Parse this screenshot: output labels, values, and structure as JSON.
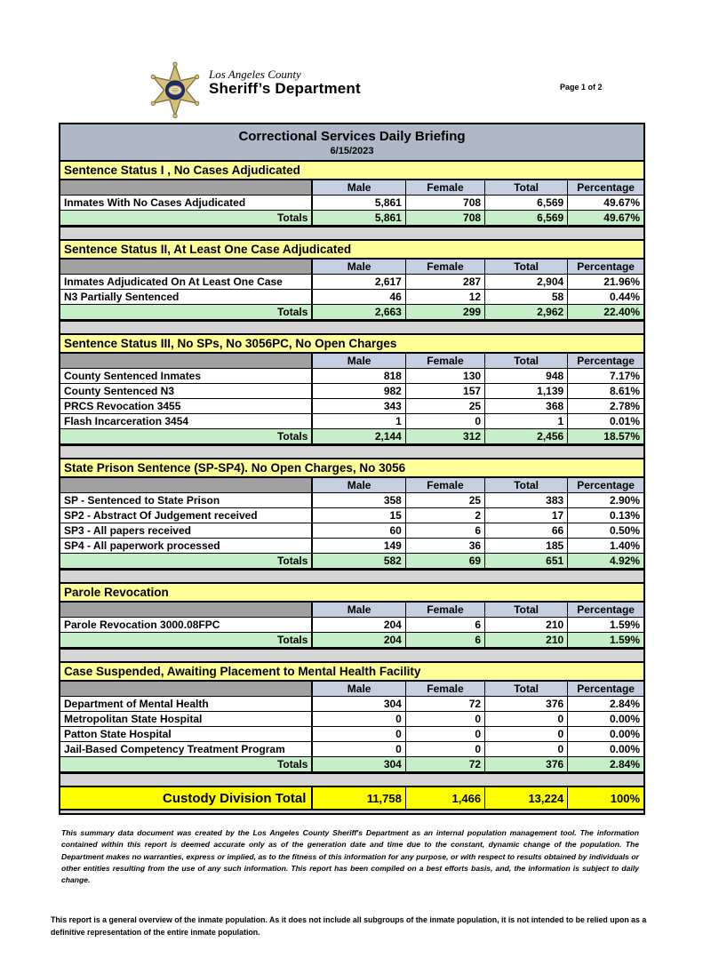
{
  "header": {
    "logo_county": "Los Angeles County",
    "logo_department": "Sheriff’s Department",
    "page_indicator": "Page 1 of 2",
    "badge_icon": "sheriff-star-badge"
  },
  "title": {
    "heading": "Correctional Services Daily Briefing",
    "date": "6/15/2023"
  },
  "table": {
    "columns": [
      "Male",
      "Female",
      "Total",
      "Percentage"
    ],
    "totals_label": "Totals"
  },
  "sections": [
    {
      "title": "Sentence Status I , No Cases Adjudicated",
      "rows": [
        {
          "label": "Inmates With No Cases Adjudicated",
          "values": [
            "5,861",
            "708",
            "6,569",
            "49.67%"
          ]
        }
      ],
      "totals": [
        "5,861",
        "708",
        "6,569",
        "49.67%"
      ]
    },
    {
      "title": "Sentence Status II, At Least One Case Adjudicated",
      "rows": [
        {
          "label": "Inmates Adjudicated On At Least One Case",
          "values": [
            "2,617",
            "287",
            "2,904",
            "21.96%"
          ]
        },
        {
          "label": "N3 Partially Sentenced",
          "values": [
            "46",
            "12",
            "58",
            "0.44%"
          ]
        }
      ],
      "totals": [
        "2,663",
        "299",
        "2,962",
        "22.40%"
      ]
    },
    {
      "title": "Sentence Status III, No SPs, No 3056PC, No Open Charges",
      "rows": [
        {
          "label": "County Sentenced Inmates",
          "values": [
            "818",
            "130",
            "948",
            "7.17%"
          ]
        },
        {
          "label": "County Sentenced N3",
          "values": [
            "982",
            "157",
            "1,139",
            "8.61%"
          ]
        },
        {
          "label": "PRCS Revocation 3455",
          "values": [
            "343",
            "25",
            "368",
            "2.78%"
          ]
        },
        {
          "label": "Flash Incarceration 3454",
          "values": [
            "1",
            "0",
            "1",
            "0.01%"
          ]
        }
      ],
      "totals": [
        "2,144",
        "312",
        "2,456",
        "18.57%"
      ]
    },
    {
      "title": "State Prison Sentence (SP-SP4). No Open Charges, No 3056",
      "rows": [
        {
          "label": "SP - Sentenced to State Prison",
          "values": [
            "358",
            "25",
            "383",
            "2.90%"
          ]
        },
        {
          "label": "SP2 - Abstract Of Judgement received",
          "values": [
            "15",
            "2",
            "17",
            "0.13%"
          ]
        },
        {
          "label": "SP3 - All papers received",
          "values": [
            "60",
            "6",
            "66",
            "0.50%"
          ]
        },
        {
          "label": "SP4 - All paperwork processed",
          "values": [
            "149",
            "36",
            "185",
            "1.40%"
          ]
        }
      ],
      "totals": [
        "582",
        "69",
        "651",
        "4.92%"
      ]
    },
    {
      "title": "Parole Revocation",
      "rows": [
        {
          "label": "Parole Revocation 3000.08FPC",
          "values": [
            "204",
            "6",
            "210",
            "1.59%"
          ]
        }
      ],
      "totals": [
        "204",
        "6",
        "210",
        "1.59%"
      ]
    },
    {
      "title": "Case Suspended, Awaiting Placement to Mental Health Facility",
      "rows": [
        {
          "label": "Department of Mental Health",
          "values": [
            "304",
            "72",
            "376",
            "2.84%"
          ]
        },
        {
          "label": "Metropolitan State Hospital",
          "values": [
            "0",
            "0",
            "0",
            "0.00%"
          ]
        },
        {
          "label": "Patton State Hospital",
          "values": [
            "0",
            "0",
            "0",
            "0.00%"
          ]
        },
        {
          "label": "Jail-Based Competency Treatment Program",
          "values": [
            "0",
            "0",
            "0",
            "0.00%"
          ]
        }
      ],
      "totals": [
        "304",
        "72",
        "376",
        "2.84%"
      ]
    }
  ],
  "custody_total": {
    "label": "Custody Division Total",
    "values": [
      "11,758",
      "1,466",
      "13,224",
      "100%"
    ]
  },
  "footnotes": {
    "disclaimer": "This summary data document was created by the Los Angeles County Sheriff's Department as an internal population management tool.  The information contained within this report is deemed accurate only as of the generation date and time due to the constant, dynamic change of the population.  The Department makes no warranties, express or implied, as to the fitness of this information for any purpose, or with respect to results obtained by individuals or other entities resulting from the use of any such information.  This report has been compiled on a best efforts basis, and, the information is subject to daily change.",
    "overview": "This report is a general overview of the inmate population.  As it does not include all subgroups of the inmate population, it is not intended to be relied upon as a definitive representation of the entire inmate population."
  },
  "colors": {
    "section_header": "#FFFF99",
    "column_header": "#C6CFDF",
    "column_header_corner": "#A1A1A1",
    "totals_row": "#C6EFC9",
    "title_bar": "#AEB8C6",
    "container_bg": "#D5D5D5",
    "custody_total": "#FFFF00",
    "badge_gold": "#D6BE7B",
    "badge_blue": "#1E2D6B"
  }
}
